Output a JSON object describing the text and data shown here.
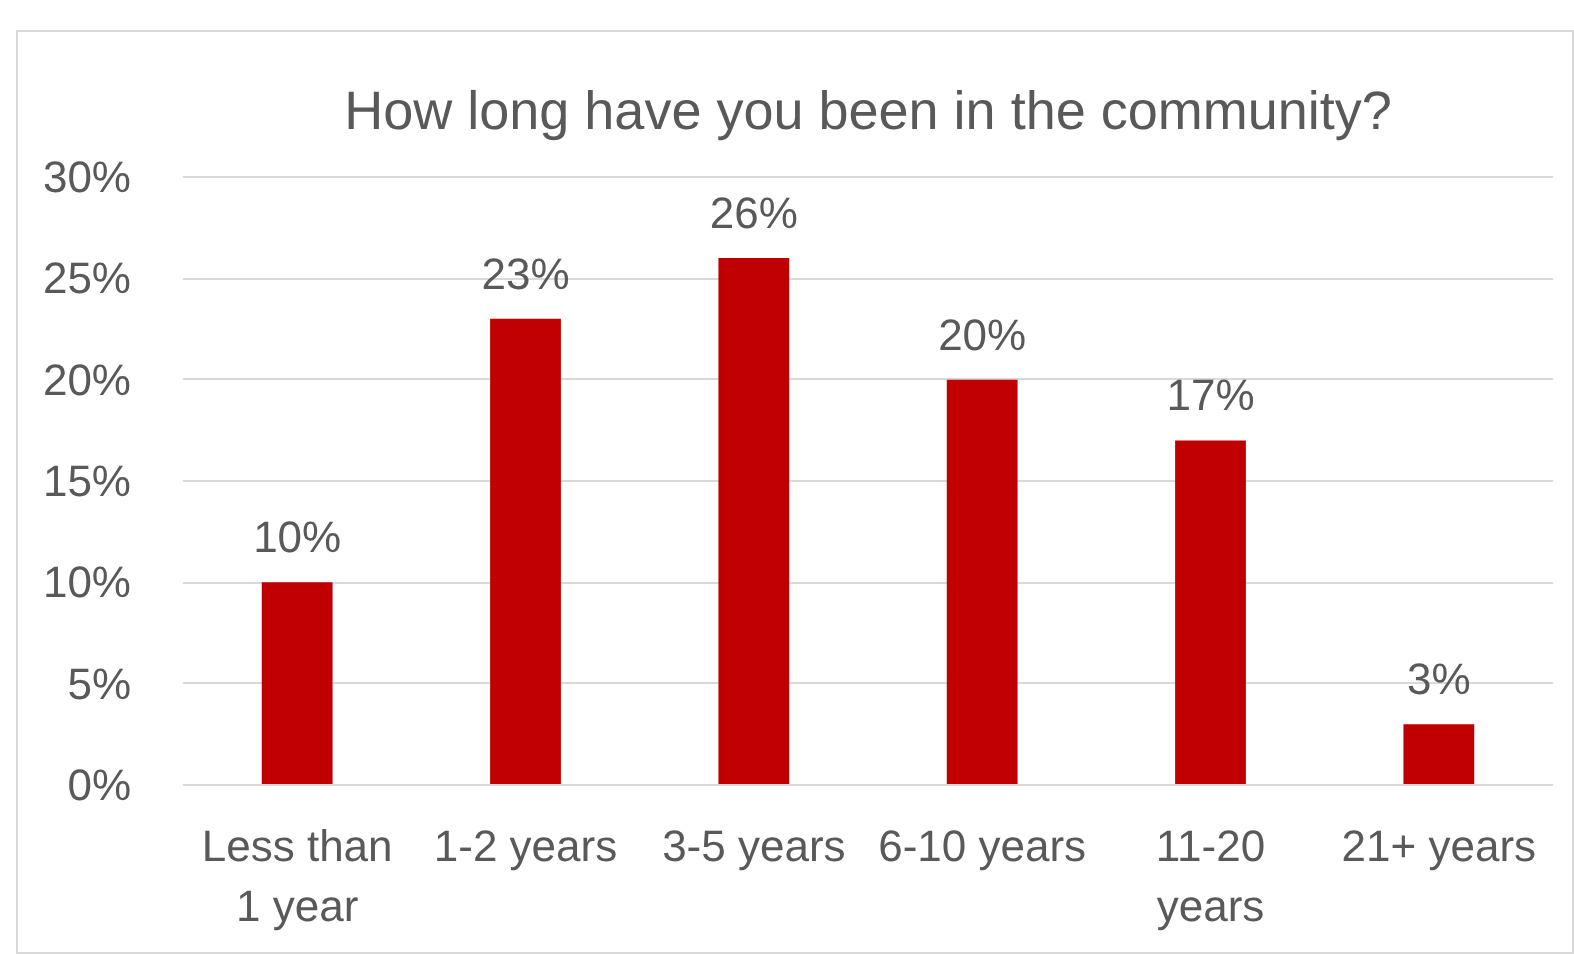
{
  "chart_data": {
    "type": "bar",
    "title": "How long have you been in the community?",
    "categories": [
      "Less than\n1 year",
      "1-2 years",
      "3-5 years",
      "6-10 years",
      "11-20\nyears",
      "21+ years"
    ],
    "values": [
      10,
      23,
      26,
      20,
      17,
      3
    ],
    "color": "#c00000",
    "value_labels": [
      "10%",
      "23%",
      "26%",
      "20%",
      "17%",
      "3%"
    ],
    "ylim": [
      0,
      30
    ],
    "yticks": [
      {
        "value": 0,
        "label": "0%"
      },
      {
        "value": 5,
        "label": "5%"
      },
      {
        "value": 10,
        "label": "10%"
      },
      {
        "value": 15,
        "label": "15%"
      },
      {
        "value": 20,
        "label": "20%"
      },
      {
        "value": 25,
        "label": "25%"
      },
      {
        "value": 30,
        "label": "30%"
      }
    ],
    "grid": "y"
  }
}
